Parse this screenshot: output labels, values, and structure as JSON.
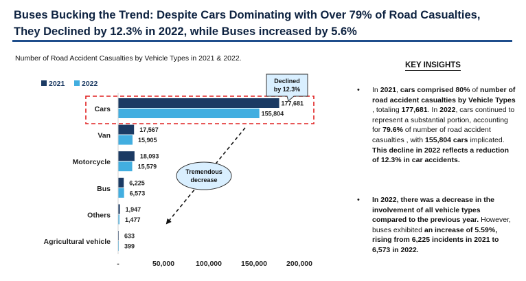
{
  "title_line1": "Buses Bucking the Trend: Despite Cars Dominating with Over 79% of Road Casualties,",
  "title_line2": "They Declined by 12.3% in 2022, while Buses increased by 5.6%",
  "subtitle": "Number of Road Accident Casualties by Vehicle Types in 2021 & 2022.",
  "chart_data": {
    "type": "bar",
    "orientation": "horizontal",
    "categories": [
      "Cars",
      "Van",
      "Motorcycle",
      "Bus",
      "Others",
      "Agricultural vehicle"
    ],
    "series": [
      {
        "name": "2021",
        "color": "#1b3a63",
        "values": [
          177681,
          17567,
          18093,
          6225,
          1947,
          633
        ]
      },
      {
        "name": "2022",
        "color": "#42aee0",
        "values": [
          155804,
          15905,
          15579,
          6573,
          1477,
          399
        ]
      }
    ],
    "value_labels": [
      [
        "177,681",
        "155,804"
      ],
      [
        "17,567",
        "15,905"
      ],
      [
        "18,093",
        "15,579"
      ],
      [
        "6,225",
        "6,573"
      ],
      [
        "1,947",
        "1,477"
      ],
      [
        "633",
        "399"
      ]
    ],
    "xlim": [
      0,
      200000
    ],
    "xticks": [
      0,
      50000,
      100000,
      150000,
      200000
    ],
    "xtick_labels": [
      "-",
      "50,000",
      "100,000",
      "150,000",
      "200,000"
    ],
    "legend_position": "top-left",
    "grid": false,
    "annotations": {
      "callout": "Declined by 12.3%",
      "bubble": "Tremendous decrease"
    }
  },
  "insights": {
    "title": "KEY INSIGHTS",
    "bullet_glyph": "•",
    "item1": {
      "p1": "In ",
      "b1": "2021",
      "p2": ", ",
      "b2": "cars comprised 80%",
      "p3": " of ",
      "b3": "number of road accident casualties by Vehicle Types",
      "p4": " , totaling ",
      "b4": "177,681",
      "p5": ". In ",
      "b5": "2022",
      "p6": ", cars continued to represent a substantial portion, accounting for ",
      "b6": "79.6%",
      "p7": " of number of road accident casualties , with ",
      "b7": "155,804 cars",
      "p8": " implicated. ",
      "b8": "This decline in 2022 reflects a reduction of 12.3% in car accidents."
    },
    "item2": {
      "b1": "In 2022, there was a decrease in the involvement of all vehicle types compared to the previous year.",
      "p1": " However, buses exhibited ",
      "b2": "an increase of 5.59%, rising from 6,225 incidents in 2021 to 6,573 in 2022."
    }
  }
}
